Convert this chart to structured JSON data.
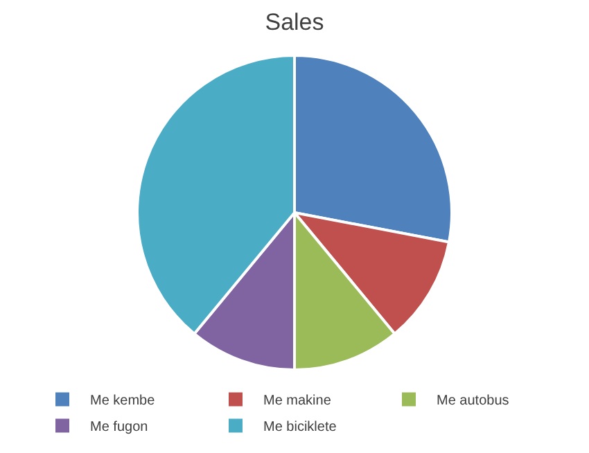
{
  "chart_data": {
    "type": "pie",
    "title": "Sales",
    "categories": [
      "Me kembe",
      "Me makine",
      "Me autobus",
      "Me fugon",
      "Me biciklete"
    ],
    "values": [
      28,
      11,
      11,
      11,
      39
    ],
    "colors": [
      "#4f81bd",
      "#c0504d",
      "#9bbb59",
      "#8064a2",
      "#4bacc6"
    ],
    "legend": "bottom"
  }
}
